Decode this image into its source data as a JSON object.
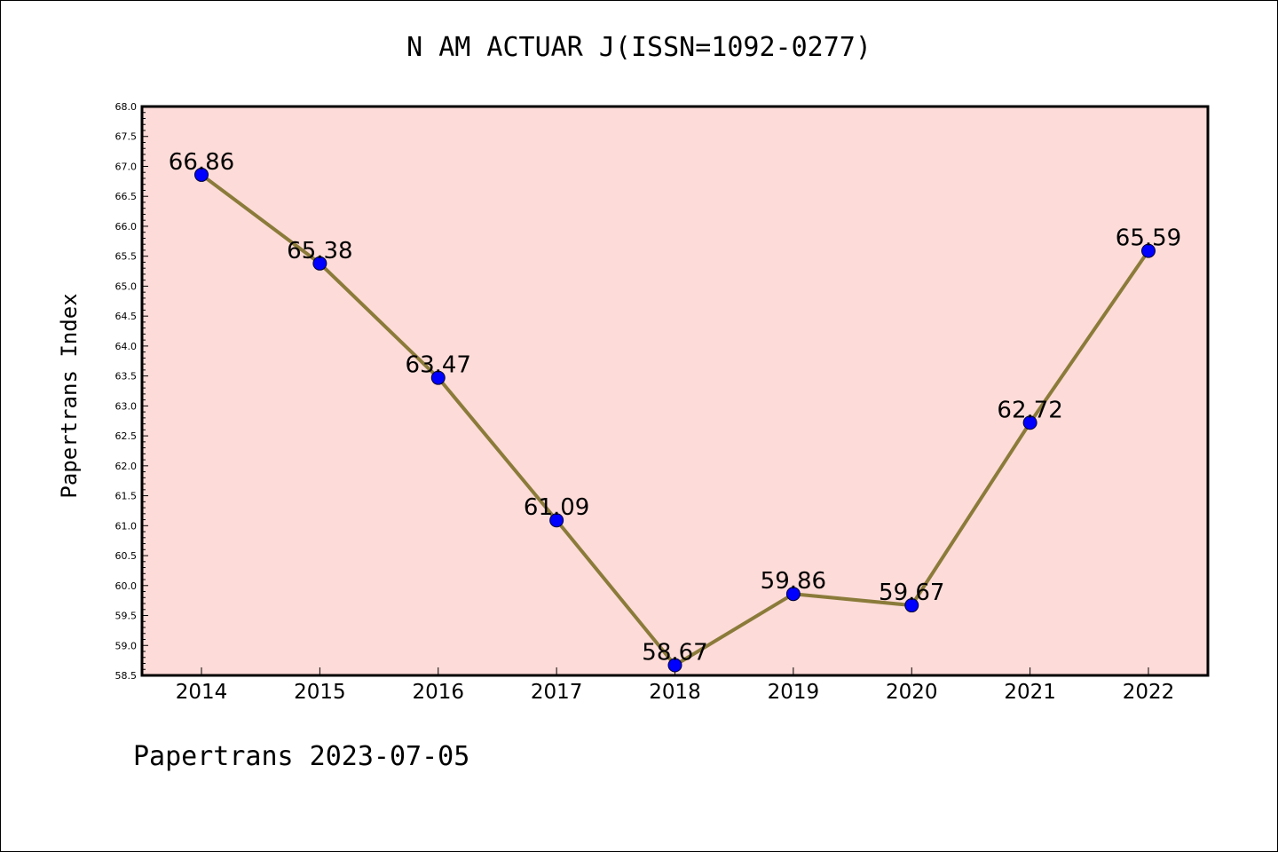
{
  "page": {
    "title": "N AM ACTUAR J(ISSN=1092-0277)",
    "footer": "Papertrans 2023-07-05"
  },
  "colors": {
    "plot_background": "#fddbd8",
    "line": "#8b7b3a",
    "marker": "#0000ff",
    "axes": "#000000"
  },
  "chart_data": {
    "type": "line",
    "title": "N AM ACTUAR J(ISSN=1092-0277)",
    "xlabel": "",
    "ylabel": "Papertrans Index",
    "categories": [
      "2014",
      "2015",
      "2016",
      "2017",
      "2018",
      "2019",
      "2020",
      "2021",
      "2022"
    ],
    "series": [
      {
        "values": [
          66.86,
          65.38,
          63.47,
          61.09,
          58.67,
          59.86,
          59.67,
          62.72,
          65.59
        ],
        "labels": [
          "66.86",
          "65.38",
          "63.47",
          "61.09",
          "58.67",
          "59.86",
          "59.67",
          "62.72",
          "65.59"
        ]
      }
    ],
    "ylim": [
      58.5,
      68.0
    ],
    "ytick_step": 0.5,
    "grid": false,
    "legend": "none"
  }
}
